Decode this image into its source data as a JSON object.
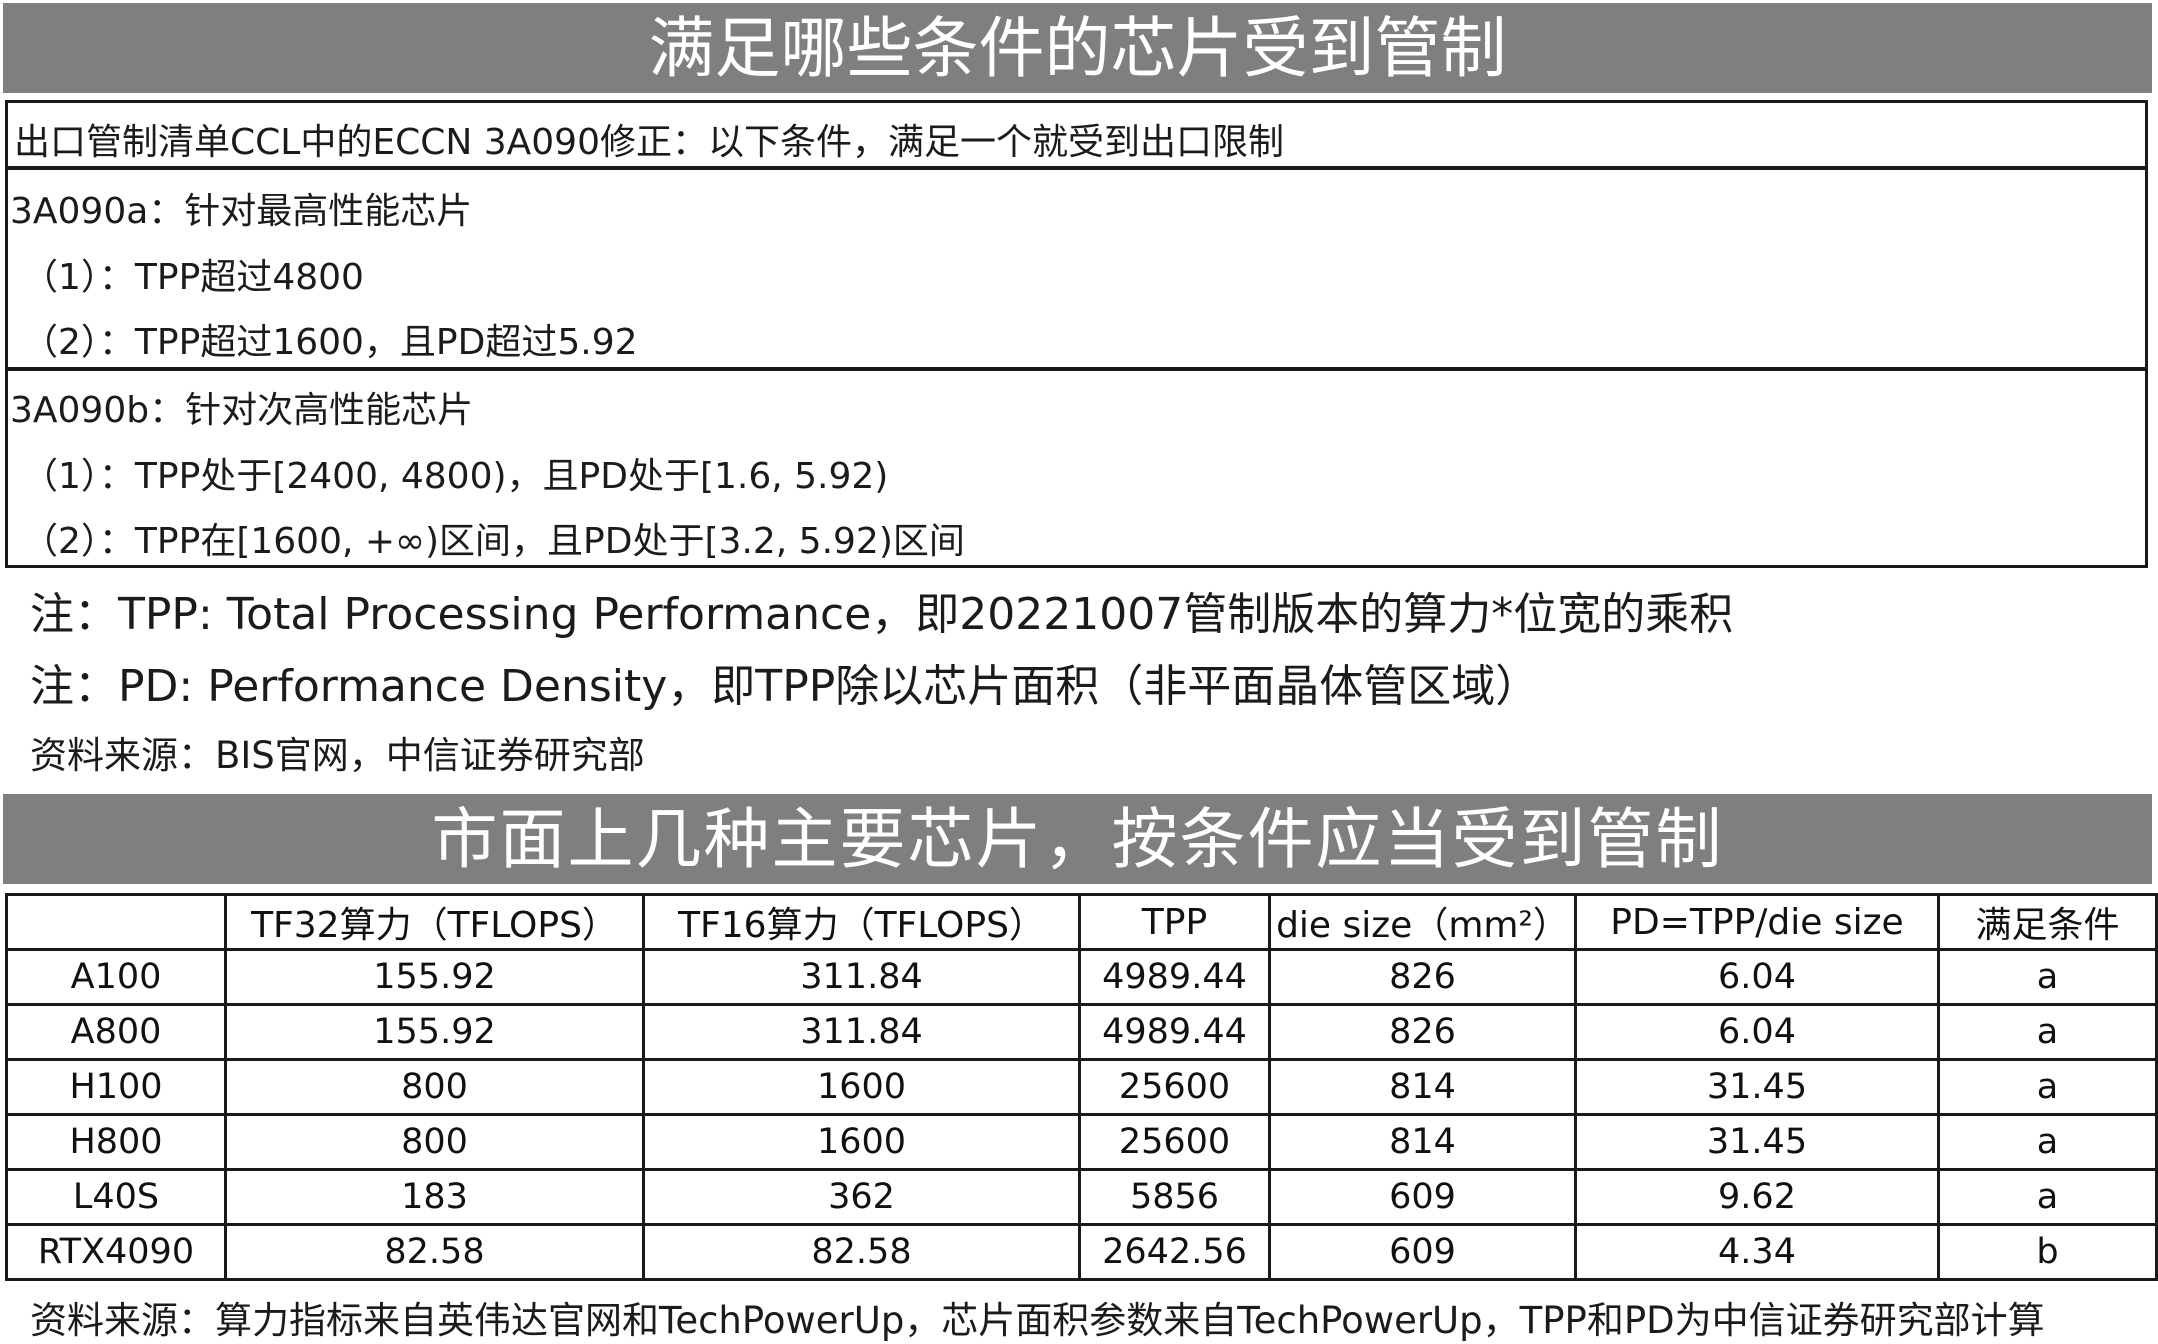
{
  "section1": {
    "title": "满足哪些条件的芯片受到管制",
    "intro": "出口管制清单CCL中的ECCN 3A090修正：以下条件，满足一个就受到出口限制",
    "a_heading": "3A090a：针对最高性能芯片",
    "a1": "（1）：TPP超过4800",
    "a2": "（2）：TPP超过1600，且PD超过5.92",
    "b_heading": "3A090b：针对次高性能芯片",
    "b1": "（1）：TPP处于[2400, 4800)，且PD处于[1.6, 5.92)",
    "b2": "（2）：TPP在[1600, +∞)区间，且PD处于[3.2, 5.92)区间",
    "note1": "注：TPP: Total Processing Performance，即20221007管制版本的算力*位宽的乘积",
    "note2": "注：PD: Performance Density，即TPP除以芯片面积（非平面晶体管区域）",
    "source": "资料来源：BIS官网，中信证券研究部"
  },
  "section2": {
    "title": "市面上几种主要芯片，按条件应当受到管制",
    "headers": [
      "",
      "TF32算力（TFLOPS）",
      "TF16算力（TFLOPS）",
      "TPP",
      "die size（mm²）",
      "PD=TPP/die size",
      "满足条件"
    ],
    "rows": [
      [
        "A100",
        "155.92",
        "311.84",
        "4989.44",
        "826",
        "6.04",
        "a"
      ],
      [
        "A800",
        "155.92",
        "311.84",
        "4989.44",
        "826",
        "6.04",
        "a"
      ],
      [
        "H100",
        "800",
        "1600",
        "25600",
        "814",
        "31.45",
        "a"
      ],
      [
        "H800",
        "800",
        "1600",
        "25600",
        "814",
        "31.45",
        "a"
      ],
      [
        "L40S",
        "183",
        "362",
        "5856",
        "609",
        "9.62",
        "a"
      ],
      [
        "RTX4090",
        "82.58",
        "82.58",
        "2642.56",
        "609",
        "4.34",
        "b"
      ]
    ],
    "footer": "资料来源：算力指标来自英伟达官网和TechPowerUp，芯片面积参数来自TechPowerUp，TPP和PD为中信证券研究部计算"
  },
  "colors": {
    "banner": "#7f7f7f",
    "border": "#1a1a1a"
  }
}
